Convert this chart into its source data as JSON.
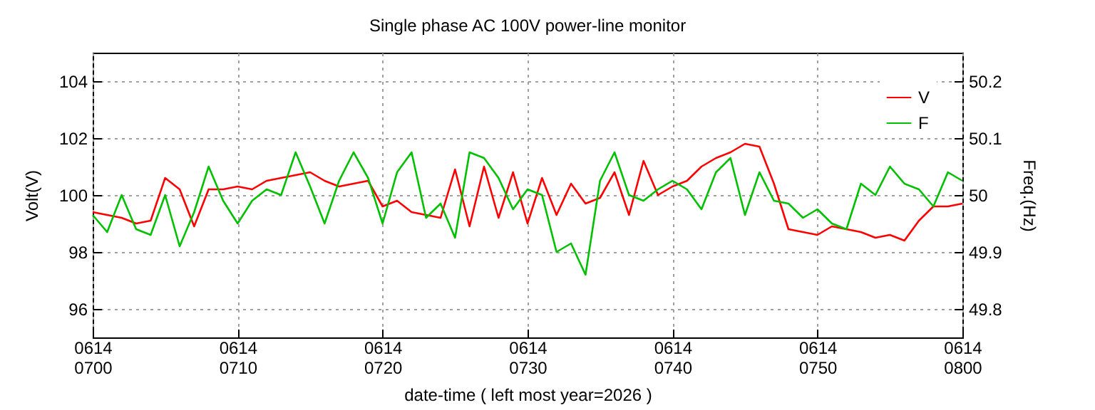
{
  "chart_data": {
    "type": "line",
    "title": "Single phase AC 100V power-line monitor",
    "xlabel": "date-time ( left most year=2026 )",
    "ylabel": "Volt(V)",
    "y2label": "Freq.(Hz)",
    "x": [
      "2026-06-14T07:00",
      "2026-06-14T07:01",
      "2026-06-14T07:02",
      "2026-06-14T07:03",
      "2026-06-14T07:04",
      "2026-06-14T07:05",
      "2026-06-14T07:06",
      "2026-06-14T07:07",
      "2026-06-14T07:08",
      "2026-06-14T07:09",
      "2026-06-14T07:10",
      "2026-06-14T07:11",
      "2026-06-14T07:12",
      "2026-06-14T07:13",
      "2026-06-14T07:14",
      "2026-06-14T07:15",
      "2026-06-14T07:16",
      "2026-06-14T07:17",
      "2026-06-14T07:18",
      "2026-06-14T07:19",
      "2026-06-14T07:20",
      "2026-06-14T07:21",
      "2026-06-14T07:22",
      "2026-06-14T07:23",
      "2026-06-14T07:24",
      "2026-06-14T07:25",
      "2026-06-14T07:26",
      "2026-06-14T07:27",
      "2026-06-14T07:28",
      "2026-06-14T07:29",
      "2026-06-14T07:30",
      "2026-06-14T07:31",
      "2026-06-14T07:32",
      "2026-06-14T07:33",
      "2026-06-14T07:34",
      "2026-06-14T07:35",
      "2026-06-14T07:36",
      "2026-06-14T07:37",
      "2026-06-14T07:38",
      "2026-06-14T07:39",
      "2026-06-14T07:40",
      "2026-06-14T07:41",
      "2026-06-14T07:42",
      "2026-06-14T07:43",
      "2026-06-14T07:44",
      "2026-06-14T07:45",
      "2026-06-14T07:46",
      "2026-06-14T07:47",
      "2026-06-14T07:48",
      "2026-06-14T07:49",
      "2026-06-14T07:50",
      "2026-06-14T07:51",
      "2026-06-14T07:52",
      "2026-06-14T07:53",
      "2026-06-14T07:54",
      "2026-06-14T07:55",
      "2026-06-14T07:56",
      "2026-06-14T07:57",
      "2026-06-14T07:58",
      "2026-06-14T07:59",
      "2026-06-14T08:00"
    ],
    "series": [
      {
        "name": "V",
        "color": "#ff0000",
        "values": [
          99.4,
          99.3,
          99.2,
          99.0,
          99.1,
          100.6,
          100.2,
          98.9,
          100.2,
          100.2,
          100.3,
          100.2,
          100.5,
          100.6,
          100.7,
          100.8,
          100.5,
          100.3,
          100.4,
          100.5,
          99.6,
          99.8,
          99.4,
          99.3,
          99.2,
          100.9,
          98.9,
          101.0,
          99.2,
          100.8,
          99.0,
          100.6,
          99.3,
          100.4,
          99.7,
          99.9,
          100.8,
          99.3,
          101.2,
          100.0,
          100.3,
          100.5,
          101.0,
          101.3,
          101.5,
          101.8,
          101.7,
          100.4,
          98.8,
          98.7,
          98.6,
          98.9,
          98.8,
          98.7,
          98.5,
          98.6,
          98.4,
          99.1,
          99.6,
          99.6,
          99.7
        ]
      },
      {
        "name": "F",
        "color": "#00c000",
        "axis": "y2",
        "values": [
          49.965,
          49.935,
          50,
          49.94,
          49.93,
          50,
          49.91,
          49.97,
          50.05,
          49.99,
          49.95,
          49.99,
          50.01,
          50,
          50.075,
          50.015,
          49.95,
          50.025,
          50.075,
          50.03,
          49.95,
          50.04,
          50.075,
          49.96,
          49.985,
          49.925,
          50.075,
          50.065,
          50.03,
          49.975,
          50.01,
          50,
          49.9,
          49.915,
          49.86,
          50.025,
          50.075,
          50,
          49.99,
          50.01,
          50.025,
          50.01,
          49.975,
          50.04,
          50.065,
          49.965,
          50.04,
          49.99,
          49.985,
          49.96,
          49.975,
          49.95,
          49.94,
          50.02,
          50,
          50.05,
          50.02,
          50.01,
          49.98,
          50.04,
          50.025
        ]
      }
    ],
    "xlim": [
      "2026-06-14T07:00",
      "2026-06-14T08:00"
    ],
    "xticks": [
      {
        "value": "2026-06-14T07:00",
        "label": "0614\n0700"
      },
      {
        "value": "2026-06-14T07:10",
        "label": "0614\n0710"
      },
      {
        "value": "2026-06-14T07:20",
        "label": "0614\n0720"
      },
      {
        "value": "2026-06-14T07:30",
        "label": "0614\n0730"
      },
      {
        "value": "2026-06-14T07:40",
        "label": "0614\n0740"
      },
      {
        "value": "2026-06-14T07:50",
        "label": "0614\n0750"
      },
      {
        "value": "2026-06-14T08:00",
        "label": "0614\n0800"
      }
    ],
    "ylim": [
      95,
      105
    ],
    "yticks": [
      96,
      98,
      100,
      102,
      104
    ],
    "y2lim": [
      49.75,
      50.25
    ],
    "y2ticks": [
      49.8,
      49.9,
      50,
      50.1,
      50.2
    ],
    "grid": true,
    "legend": "top right"
  }
}
